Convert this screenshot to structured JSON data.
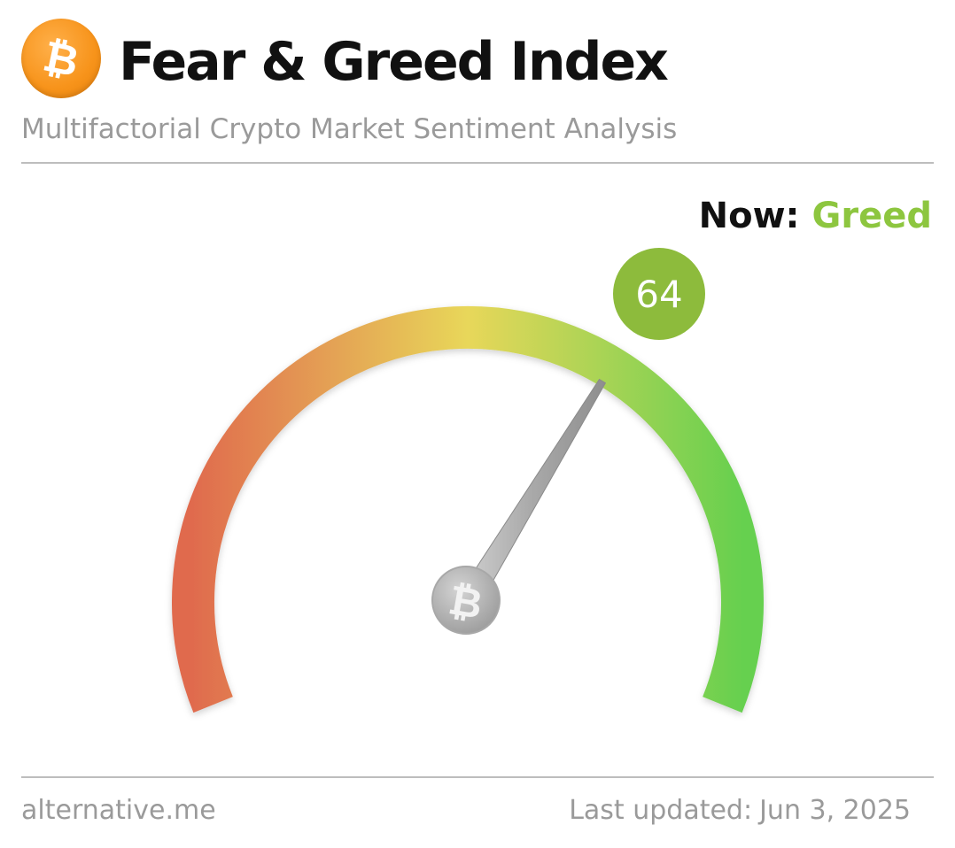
{
  "header": {
    "title": "Fear & Greed Index",
    "subtitle": "Multifactorial Crypto Market Sentiment Analysis",
    "logo_icon": "bitcoin-icon",
    "logo_color": "#f7931a"
  },
  "status": {
    "now_label": "Now:",
    "now_value": "Greed",
    "now_color": "#8dc63f"
  },
  "gauge": {
    "value": 64,
    "value_label": "64",
    "min": 0,
    "max": 100,
    "badge_color": "#8dbb3c",
    "colors": {
      "fear": "#e06b4e",
      "neutral": "#e8d75a",
      "greed": "#66d04f"
    },
    "hub_icon": "bitcoin-icon"
  },
  "footer": {
    "source": "alternative.me",
    "updated_label": "Last updated:",
    "updated_date": "Jun 3, 2025"
  }
}
